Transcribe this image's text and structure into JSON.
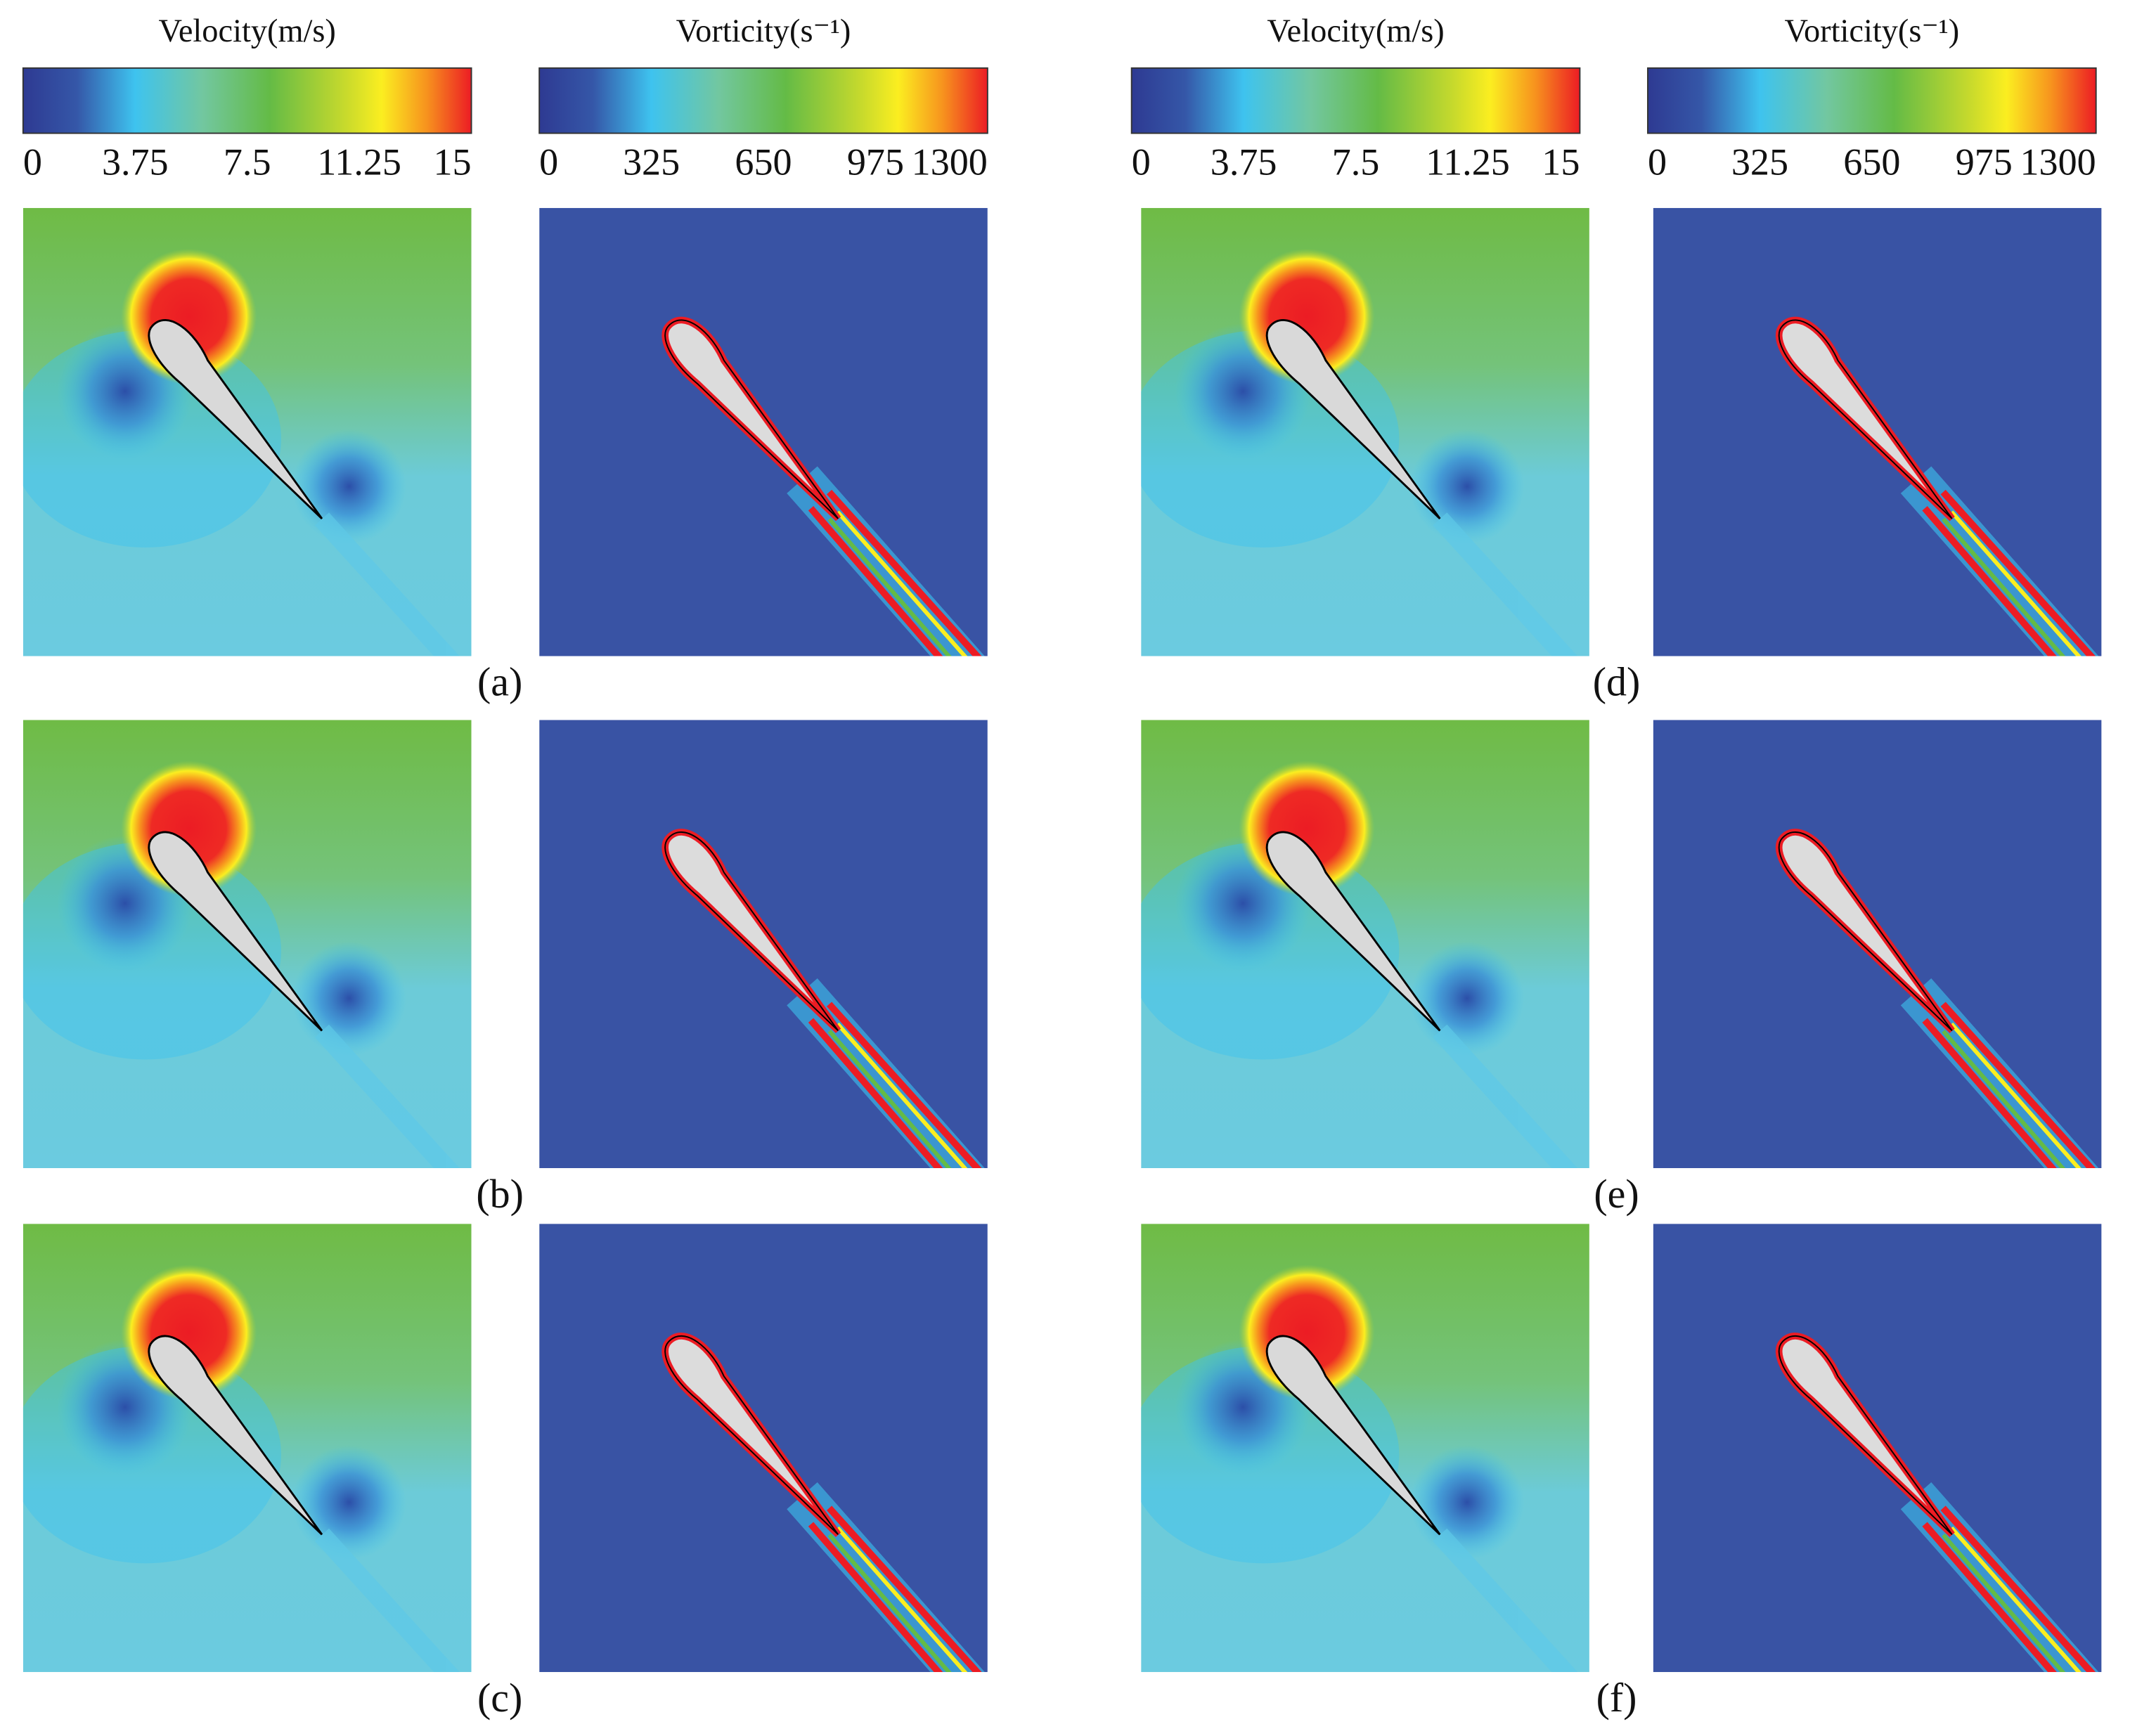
{
  "colorbars": [
    {
      "title": "Velocity(m/s)",
      "lim": [
        0,
        15
      ],
      "ticks": [
        0,
        3.75,
        7.5,
        11.25,
        15
      ]
    },
    {
      "title": "Vorticity(s⁻¹)",
      "lim": [
        0,
        1300
      ],
      "ticks": [
        0,
        325,
        650,
        975,
        1300
      ]
    },
    {
      "title": "Velocity(m/s)",
      "lim": [
        0,
        15
      ],
      "ticks": [
        0,
        3.75,
        7.5,
        11.25,
        15
      ]
    },
    {
      "title": "Vorticity(s⁻¹)",
      "lim": [
        0,
        1300
      ],
      "ticks": [
        0,
        325,
        650,
        975,
        1300
      ]
    }
  ],
  "panels": [
    {
      "label": "(a)"
    },
    {
      "label": "(b)"
    },
    {
      "label": "(c)"
    },
    {
      "label": "(d)"
    },
    {
      "label": "(e)"
    },
    {
      "label": "(f)"
    }
  ]
}
